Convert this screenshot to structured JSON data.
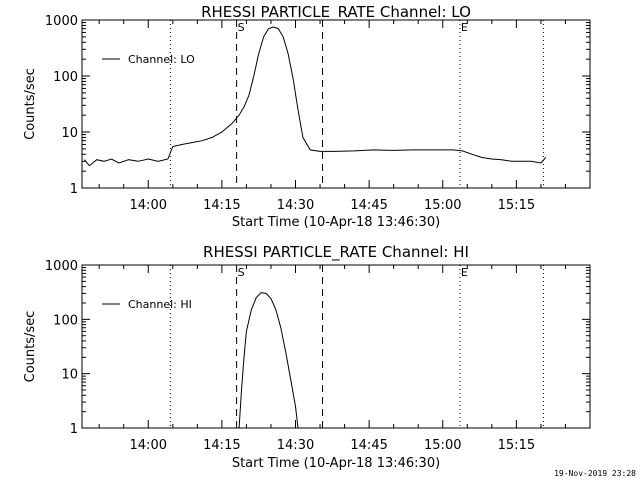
{
  "chart_data": [
    {
      "type": "line",
      "title": "RHESSI PARTICLE_RATE Channel: LO",
      "xlabel": "Start Time (10-Apr-18 13:46:30)",
      "ylabel": "Counts/sec",
      "yscale": "log",
      "xlim": [
        "13:46:30",
        "15:30:00"
      ],
      "ylim": [
        1,
        1000
      ],
      "x_ticks": [
        "14:00",
        "14:15",
        "14:30",
        "14:45",
        "15:00",
        "15:15"
      ],
      "y_ticks": [
        "1",
        "10",
        "100",
        "1000"
      ],
      "legend": {
        "position": "top-left",
        "entries": [
          "Channel: LO"
        ]
      },
      "markers": [
        {
          "time": "14:18:00",
          "style": "dashed",
          "label": "S"
        },
        {
          "time": "14:35:30",
          "style": "dashed",
          "label": ""
        },
        {
          "time": "14:04:30",
          "style": "dotted",
          "label": ""
        },
        {
          "time": "15:03:30",
          "style": "dotted",
          "label": "E"
        },
        {
          "time": "15:20:30",
          "style": "dotted",
          "label": ""
        }
      ],
      "series": [
        {
          "name": "Channel: LO",
          "x": [
            "13:47:00",
            "13:48:00",
            "13:49:30",
            "13:51:00",
            "13:52:30",
            "13:54:00",
            "13:56:00",
            "13:58:00",
            "14:00:00",
            "14:02:00",
            "14:04:00",
            "14:05:00",
            "14:07:00",
            "14:09:00",
            "14:11:00",
            "14:13:00",
            "14:15:00",
            "14:17:00",
            "14:18:30",
            "14:19:30",
            "14:20:30",
            "14:21:30",
            "14:22:30",
            "14:23:30",
            "14:24:30",
            "14:25:30",
            "14:26:30",
            "14:27:30",
            "14:28:30",
            "14:29:30",
            "14:30:30",
            "14:31:30",
            "14:33:00",
            "14:35:00",
            "14:38:00",
            "14:42:00",
            "14:46:00",
            "14:50:00",
            "14:54:00",
            "14:58:00",
            "15:02:00",
            "15:04:00",
            "15:06:00",
            "15:08:00",
            "15:10:00",
            "15:12:00",
            "15:14:00",
            "15:16:00",
            "15:18:00",
            "15:20:00",
            "15:21:00"
          ],
          "values": [
            3.2,
            2.5,
            3.2,
            3.0,
            3.3,
            2.8,
            3.2,
            3.0,
            3.3,
            3.0,
            3.3,
            5.5,
            6.0,
            6.5,
            7.0,
            8.0,
            10,
            14,
            20,
            28,
            45,
            100,
            250,
            500,
            700,
            750,
            700,
            500,
            250,
            90,
            25,
            8,
            4.8,
            4.5,
            4.5,
            4.6,
            4.8,
            4.7,
            4.8,
            4.8,
            4.8,
            4.6,
            4.0,
            3.5,
            3.3,
            3.2,
            3.0,
            3.0,
            3.0,
            2.8,
            3.5
          ]
        }
      ]
    },
    {
      "type": "line",
      "title": "RHESSI PARTICLE_RATE Channel: HI",
      "xlabel": "Start Time (10-Apr-18 13:46:30)",
      "ylabel": "Counts/sec",
      "yscale": "log",
      "xlim": [
        "13:46:30",
        "15:30:00"
      ],
      "ylim": [
        1,
        1000
      ],
      "x_ticks": [
        "14:00",
        "14:15",
        "14:30",
        "14:45",
        "15:00",
        "15:15"
      ],
      "y_ticks": [
        "1",
        "10",
        "100",
        "1000"
      ],
      "legend": {
        "position": "top-left",
        "entries": [
          "Channel: HI"
        ]
      },
      "markers": [
        {
          "time": "14:18:00",
          "style": "dashed",
          "label": "S"
        },
        {
          "time": "14:35:30",
          "style": "dashed",
          "label": ""
        },
        {
          "time": "14:04:30",
          "style": "dotted",
          "label": ""
        },
        {
          "time": "15:03:30",
          "style": "dotted",
          "label": "E"
        },
        {
          "time": "15:20:30",
          "style": "dotted",
          "label": ""
        }
      ],
      "series": [
        {
          "name": "Channel: HI",
          "x": [
            "14:18:30",
            "14:19:00",
            "14:19:30",
            "14:20:00",
            "14:21:00",
            "14:22:00",
            "14:23:00",
            "14:24:00",
            "14:25:00",
            "14:26:00",
            "14:27:00",
            "14:28:00",
            "14:29:00",
            "14:30:00",
            "14:30:30"
          ],
          "values": [
            1,
            5,
            20,
            60,
            150,
            250,
            310,
            300,
            240,
            150,
            70,
            25,
            8,
            2.5,
            1
          ]
        }
      ]
    }
  ],
  "footer": {
    "timestamp": "19-Nov-2019 23:28"
  }
}
